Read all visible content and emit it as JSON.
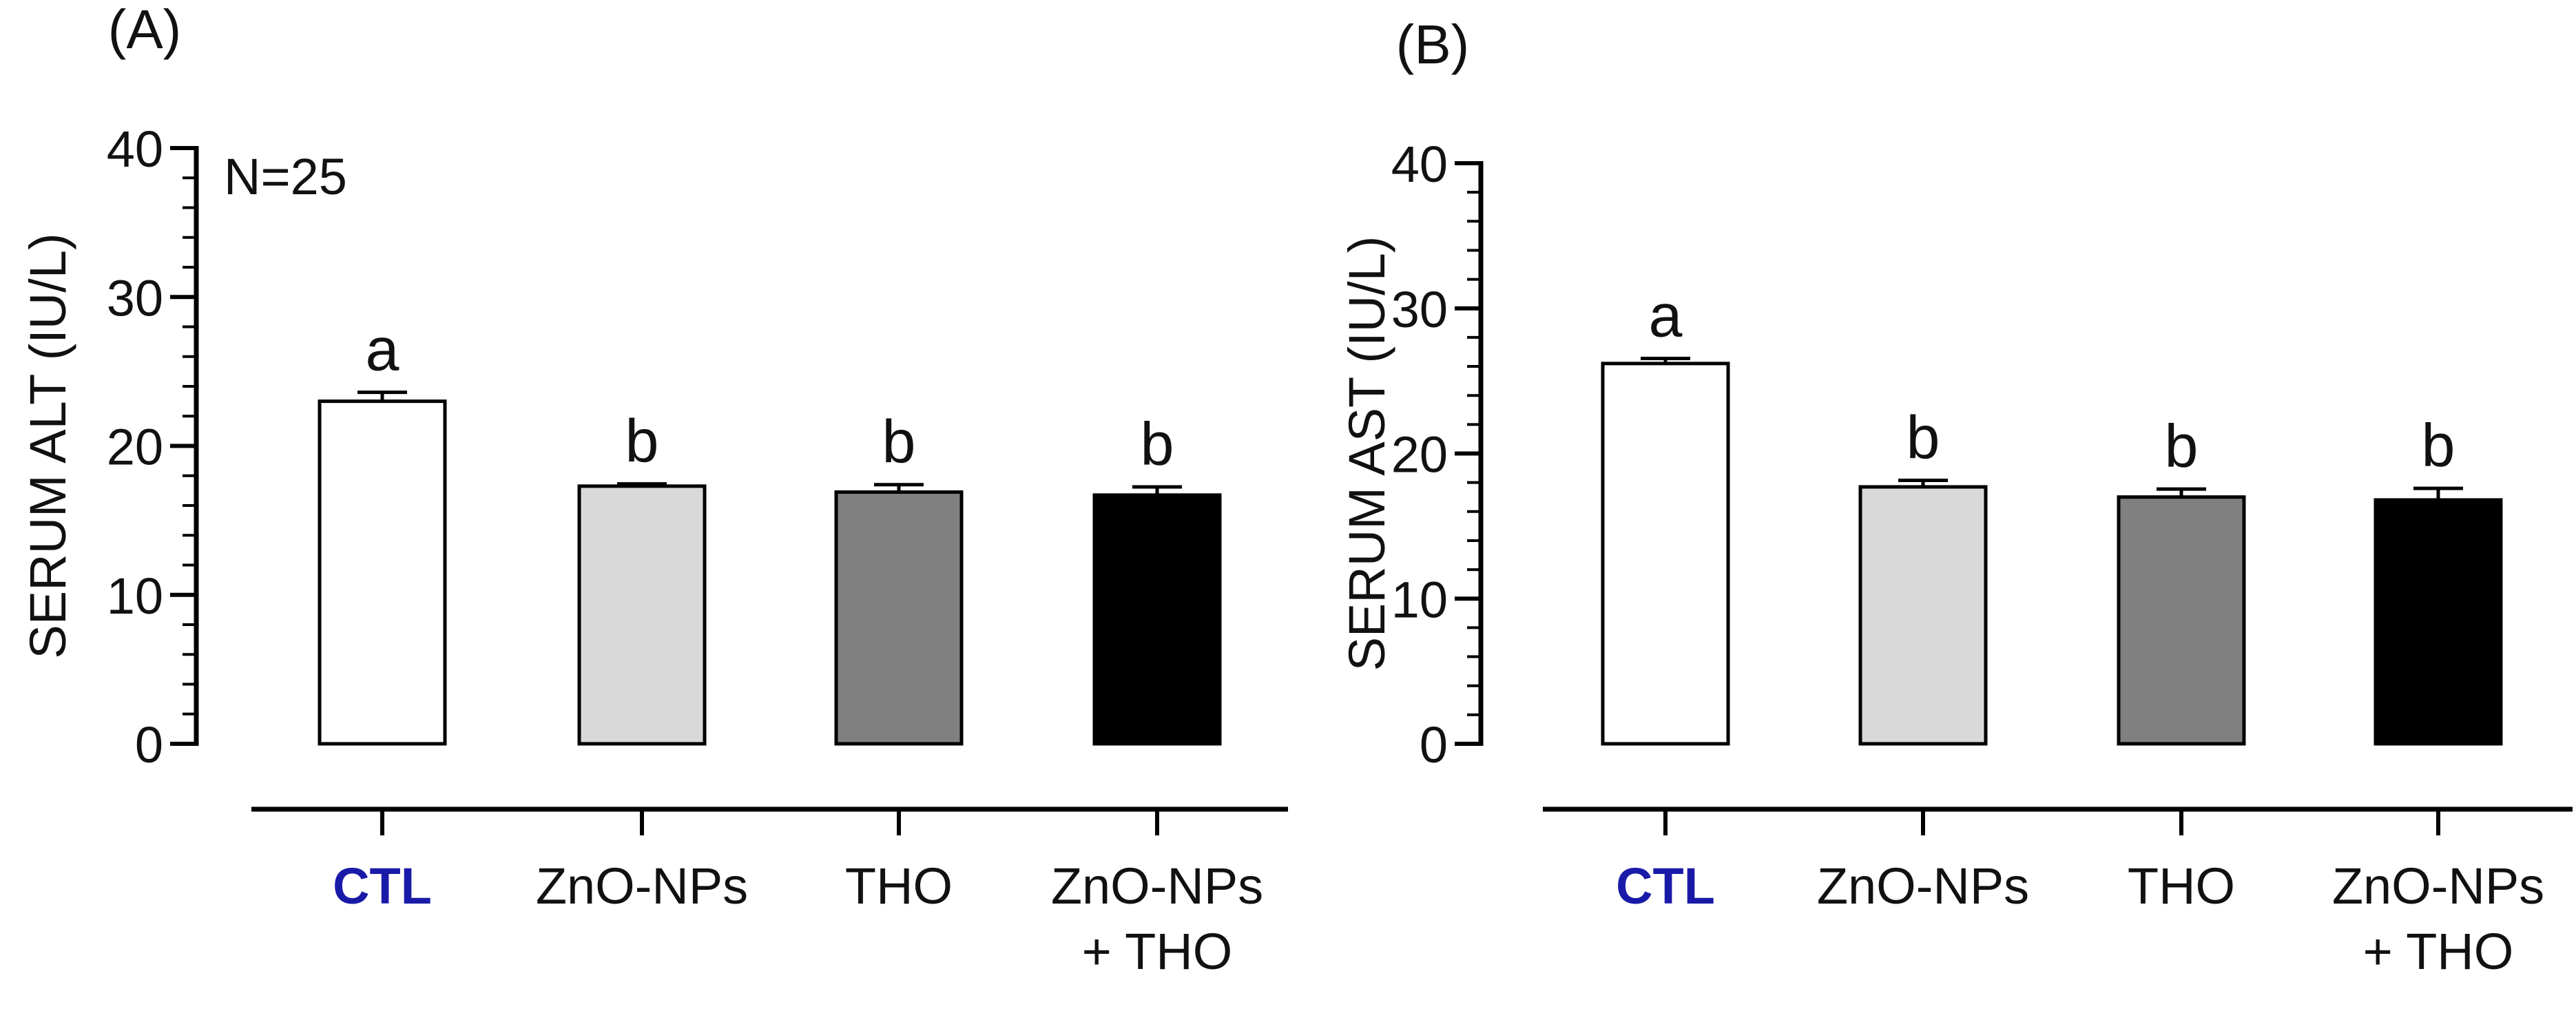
{
  "chart_data": [
    {
      "type": "bar",
      "panel_label": "(A)",
      "title": "",
      "ylabel": "SERUM ALT (IU/L)",
      "ylim": [
        0,
        40
      ],
      "yticks": [
        "0",
        "10",
        "20",
        "30",
        "40"
      ],
      "annotation": "N=25",
      "categories": [
        {
          "lines": [
            "CTL"
          ],
          "color": "#1a1aa8",
          "bold": true
        },
        {
          "lines": [
            "ZnO-NPs"
          ],
          "color": "#111111",
          "bold": false
        },
        {
          "lines": [
            "THO"
          ],
          "color": "#111111",
          "bold": false
        },
        {
          "lines": [
            "ZnO-NPs",
            "+ THO"
          ],
          "color": "#111111",
          "bold": false
        }
      ],
      "values": [
        23.0,
        17.3,
        16.9,
        16.7
      ],
      "errors": [
        0.6,
        0.15,
        0.5,
        0.55
      ],
      "letters": [
        "a",
        "b",
        "b",
        "b"
      ],
      "fills": [
        "#ffffff",
        "#d9d9d9",
        "#808080",
        "#000000"
      ]
    },
    {
      "type": "bar",
      "panel_label": "(B)",
      "title": "",
      "ylabel": "SERUM AST (IU/L)",
      "ylim": [
        0,
        40
      ],
      "yticks": [
        "0",
        "10",
        "20",
        "30",
        "40"
      ],
      "categories": [
        {
          "lines": [
            "CTL"
          ],
          "color": "#1a1aa8",
          "bold": true
        },
        {
          "lines": [
            "ZnO-NPs"
          ],
          "color": "#111111",
          "bold": false
        },
        {
          "lines": [
            "THO"
          ],
          "color": "#111111",
          "bold": false
        },
        {
          "lines": [
            "ZnO-NPs",
            "+ THO"
          ],
          "color": "#111111",
          "bold": false
        }
      ],
      "values": [
        26.2,
        17.7,
        17.0,
        16.8
      ],
      "errors": [
        0.35,
        0.45,
        0.55,
        0.8
      ],
      "letters": [
        "a",
        "b",
        "b",
        "b"
      ],
      "fills": [
        "#ffffff",
        "#d9d9d9",
        "#808080",
        "#000000"
      ]
    }
  ]
}
